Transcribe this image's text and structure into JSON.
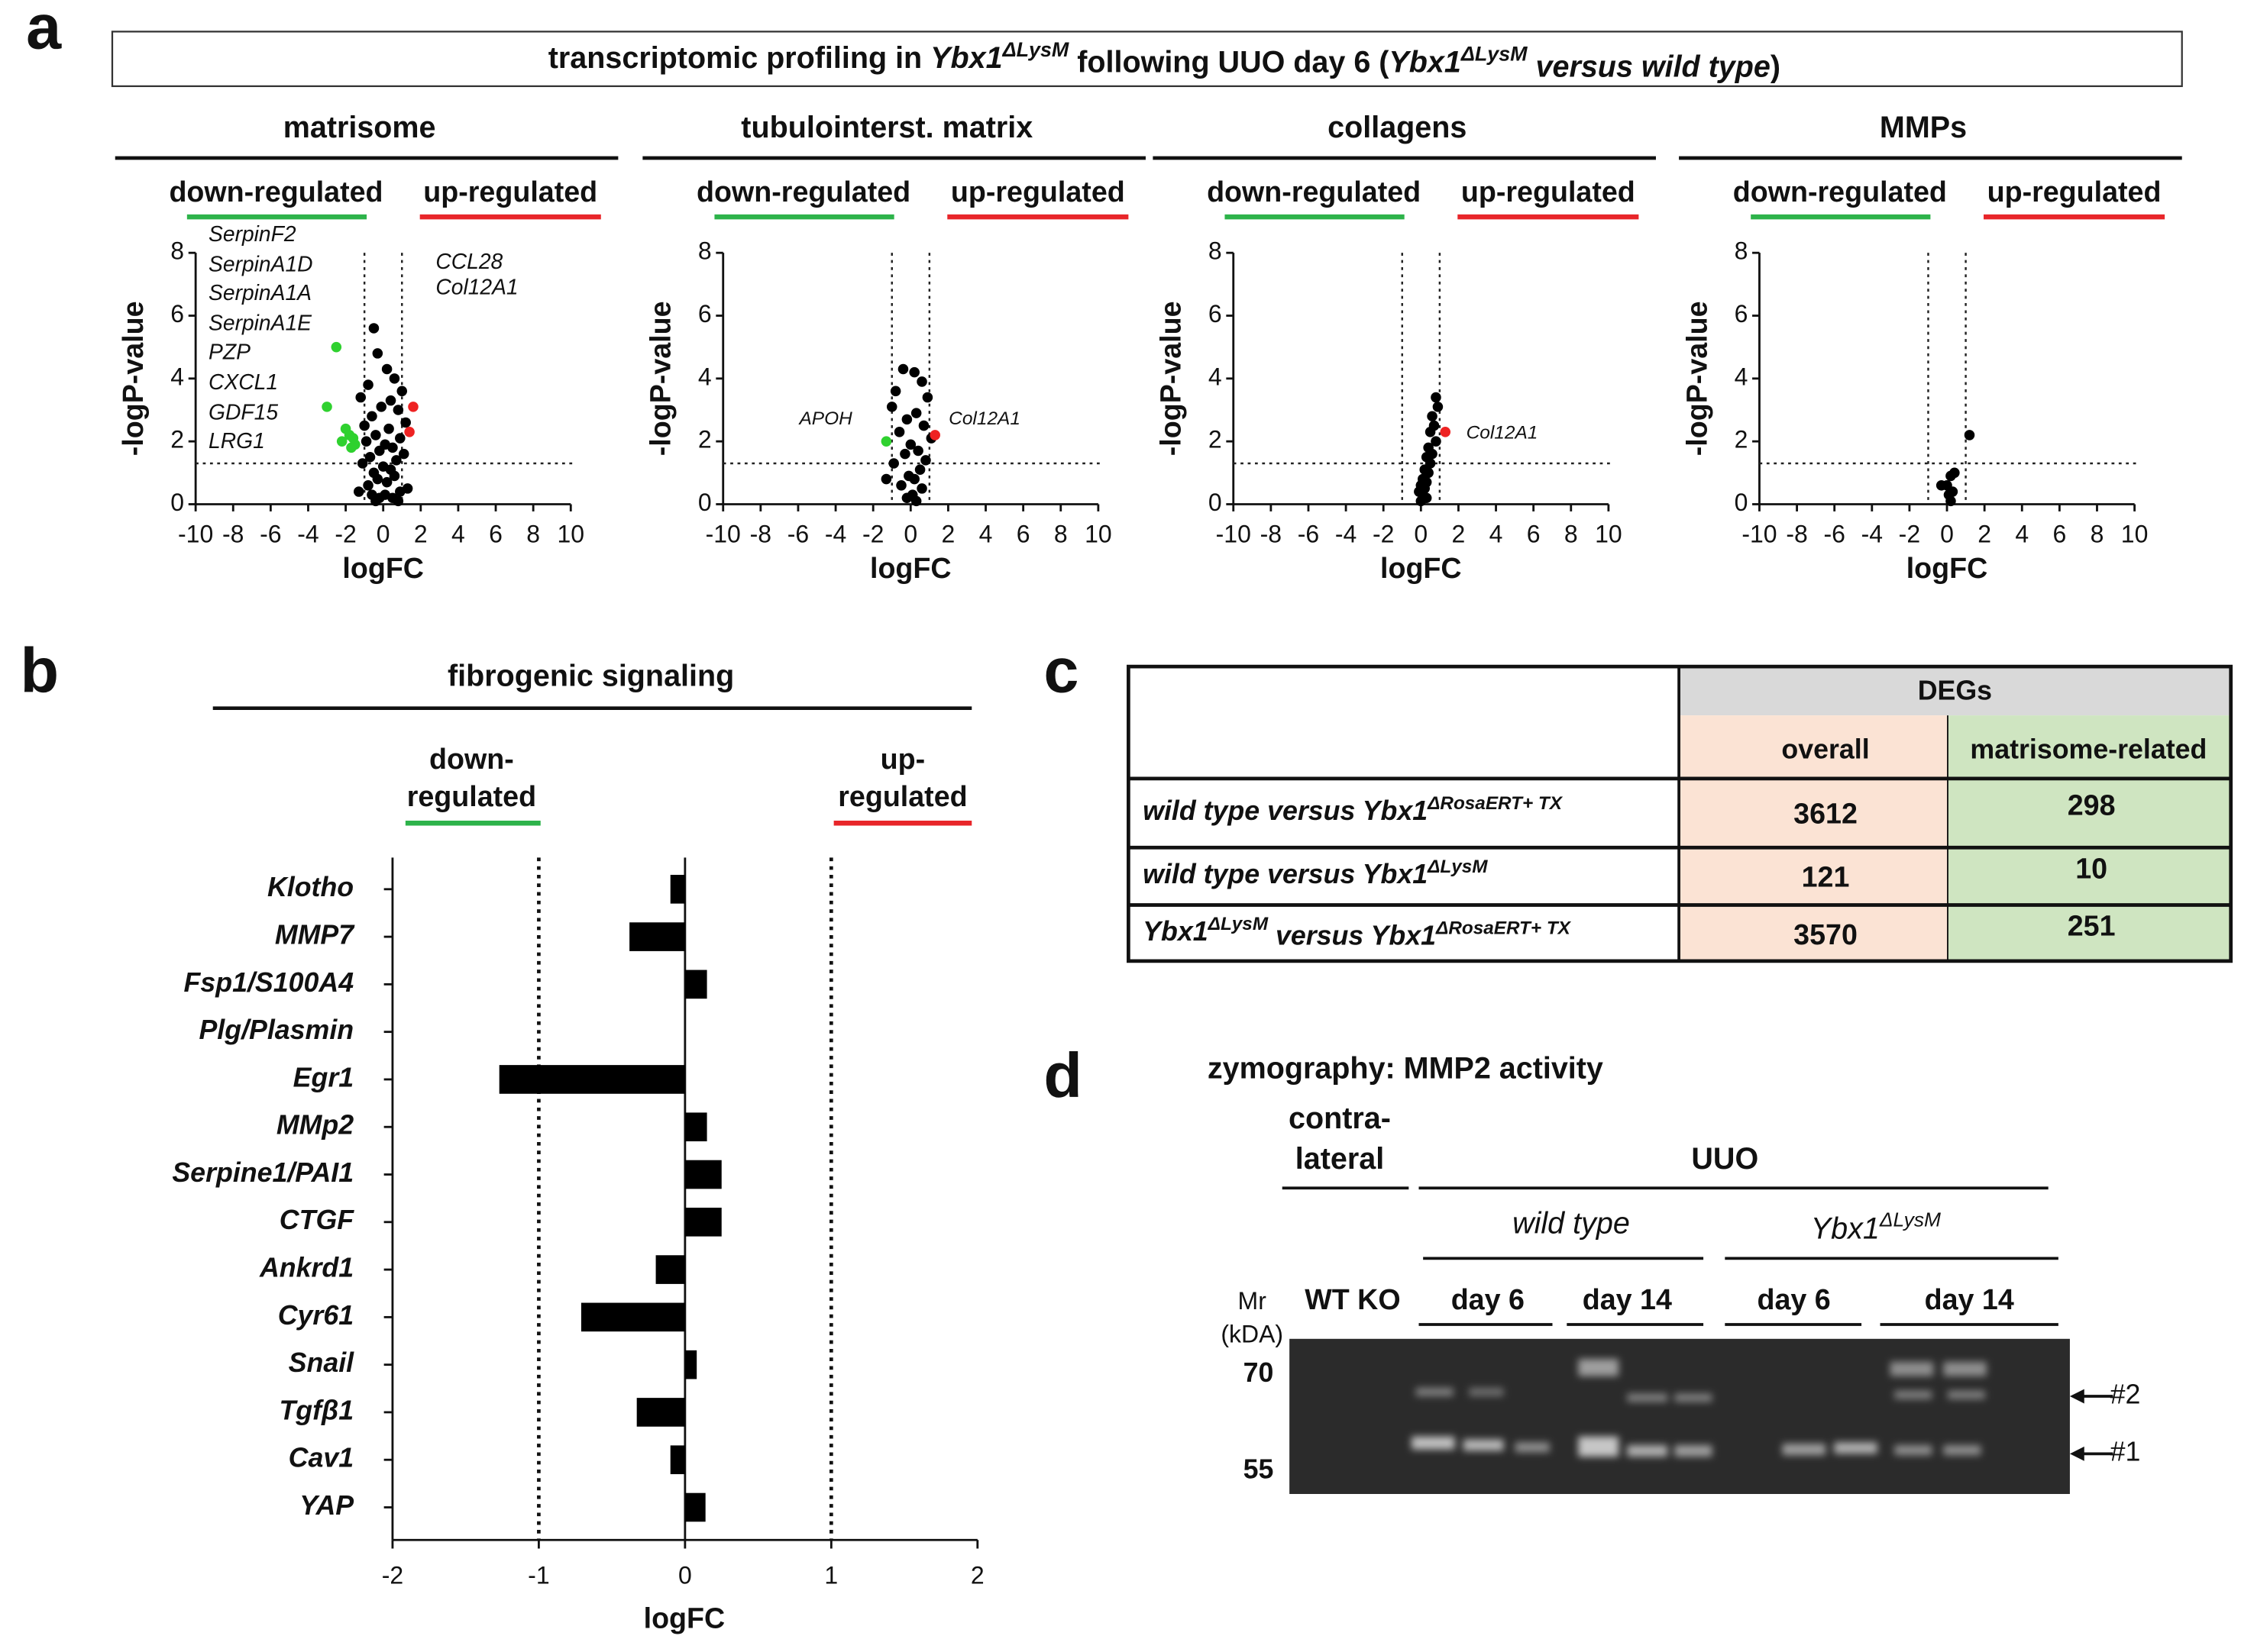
{
  "panel_labels": [
    "a",
    "b",
    "c",
    "d"
  ],
  "header": [
    "transcriptomic profiling in ",
    "Ybx1",
    "ΔLysM",
    " following UUO day 6 (",
    "Ybx1",
    "ΔLysM",
    " versus wild type",
    ")"
  ],
  "chart_data": [
    {
      "type": "scatter",
      "title": "matrisome",
      "left_label": "down-regulated",
      "right_label": "up-regulated",
      "left_color": "#2db34a",
      "right_color": "#e8262a",
      "xlabel": "logFC",
      "ylabel": "-logP-value",
      "xlim": [
        -10,
        10
      ],
      "xticks": [
        -10,
        -8,
        -6,
        -4,
        -2,
        0,
        2,
        4,
        6,
        8,
        10
      ],
      "ylim": [
        0,
        8
      ],
      "yticks": [
        0,
        2,
        4,
        6,
        8
      ],
      "reference_x": [
        -1,
        1
      ],
      "reference_y": [
        1.3
      ],
      "annotations": [
        "SerpinF2",
        "SerpinA1D",
        "SerpinA1A",
        "SerpinA1E",
        "PZP",
        "CXCL1",
        "GDF15",
        "LRG1",
        "CCL28",
        "Col12A1"
      ],
      "series": [
        {
          "color": "#000000",
          "x": [
            -0.5,
            -0.3,
            0.2,
            0.6,
            -0.8,
            1.0,
            -1.2,
            0.4,
            -0.1,
            0.8,
            -0.6,
            1.2,
            -1.0,
            0.3,
            -0.4,
            0.9,
            -0.9,
            0.1,
            0.5,
            -0.2,
            1.1,
            -0.7,
            0.7,
            -1.1,
            0.0,
            0.4,
            -0.5,
            0.6,
            -0.3,
            0.2,
            -0.8,
            1.3,
            -1.3,
            0.9,
            -0.6,
            0.1,
            0.5,
            -0.2,
            0.8,
            -0.4
          ],
          "y": [
            5.6,
            4.8,
            4.3,
            4.0,
            3.8,
            3.6,
            3.4,
            3.3,
            3.1,
            3.0,
            2.8,
            2.6,
            2.5,
            2.4,
            2.2,
            2.1,
            2.0,
            1.9,
            1.8,
            1.7,
            1.6,
            1.5,
            1.4,
            1.3,
            1.2,
            1.1,
            1.0,
            0.9,
            0.8,
            0.7,
            0.6,
            0.5,
            0.4,
            0.4,
            0.3,
            0.3,
            0.2,
            0.2,
            0.1,
            0.1
          ]
        },
        {
          "color": "#2fd12f",
          "x": [
            -2.5,
            -3.0,
            -2.0,
            -1.8,
            -1.6,
            -2.2,
            -1.5,
            -1.7
          ],
          "y": [
            5.0,
            3.1,
            2.4,
            2.2,
            2.1,
            2.0,
            1.9,
            1.8
          ]
        },
        {
          "color": "#ee2222",
          "x": [
            1.6,
            1.4
          ],
          "y": [
            3.1,
            2.3
          ]
        }
      ]
    },
    {
      "type": "scatter",
      "title": "tubulointerst. matrix",
      "left_label": "down-regulated",
      "right_label": "up-regulated",
      "left_color": "#2db34a",
      "right_color": "#e8262a",
      "xlabel": "logFC",
      "ylabel": "-logP-value",
      "xlim": [
        -10,
        10
      ],
      "xticks": [
        -10,
        -8,
        -6,
        -4,
        -2,
        0,
        2,
        4,
        6,
        8,
        10
      ],
      "ylim": [
        0,
        8
      ],
      "yticks": [
        0,
        2,
        4,
        6,
        8
      ],
      "reference_x": [
        -1,
        1
      ],
      "reference_y": [
        1.3
      ],
      "annotations": [
        "APOH",
        "Col12A1"
      ],
      "series": [
        {
          "color": "#000000",
          "x": [
            -0.4,
            0.2,
            0.6,
            -0.8,
            0.9,
            -1.0,
            0.3,
            -0.2,
            0.7,
            -0.6,
            1.1,
            0.0,
            0.4,
            -0.3,
            0.8,
            -0.9,
            0.5,
            -0.1,
            0.2,
            -0.5,
            0.6,
            0.1,
            -0.2,
            0.3,
            -1.3
          ],
          "y": [
            4.3,
            4.2,
            3.9,
            3.6,
            3.4,
            3.1,
            2.9,
            2.7,
            2.5,
            2.3,
            2.1,
            1.9,
            1.7,
            1.6,
            1.4,
            1.3,
            1.1,
            0.9,
            0.8,
            0.6,
            0.5,
            0.3,
            0.2,
            0.1,
            0.8
          ]
        },
        {
          "color": "#2fd12f",
          "x": [
            -1.3
          ],
          "y": [
            2.0
          ]
        },
        {
          "color": "#ee2222",
          "x": [
            1.3
          ],
          "y": [
            2.2
          ]
        }
      ]
    },
    {
      "type": "scatter",
      "title": "collagens",
      "left_label": "down-regulated",
      "right_label": "up-regulated",
      "left_color": "#2db34a",
      "right_color": "#e8262a",
      "xlabel": "logFC",
      "ylabel": "-logP-value",
      "xlim": [
        -10,
        10
      ],
      "xticks": [
        -10,
        -8,
        -6,
        -4,
        -2,
        0,
        2,
        4,
        6,
        8,
        10
      ],
      "ylim": [
        0,
        8
      ],
      "yticks": [
        0,
        2,
        4,
        6,
        8
      ],
      "reference_x": [
        -1,
        1
      ],
      "reference_y": [
        1.3
      ],
      "annotations": [
        "Col12A1"
      ],
      "series": [
        {
          "color": "#000000",
          "x": [
            0.8,
            0.9,
            0.6,
            0.7,
            0.5,
            0.8,
            0.4,
            0.6,
            0.3,
            0.5,
            0.2,
            0.4,
            0.1,
            0.3,
            0.0,
            0.2,
            -0.1,
            0.1,
            0.3,
            0.0
          ],
          "y": [
            3.4,
            3.1,
            2.8,
            2.5,
            2.3,
            2.0,
            1.8,
            1.6,
            1.5,
            1.3,
            1.1,
            1.0,
            0.8,
            0.7,
            0.6,
            0.5,
            0.4,
            0.3,
            0.2,
            0.1
          ]
        },
        {
          "color": "#ee2222",
          "x": [
            1.3
          ],
          "y": [
            2.3
          ]
        }
      ]
    },
    {
      "type": "scatter",
      "title": "MMPs",
      "left_label": "down-regulated",
      "right_label": "up-regulated",
      "left_color": "#2db34a",
      "right_color": "#e8262a",
      "xlabel": "logFC",
      "ylabel": "-logP-value",
      "xlim": [
        -10,
        10
      ],
      "xticks": [
        -10,
        -8,
        -6,
        -4,
        -2,
        0,
        2,
        4,
        6,
        8,
        10
      ],
      "ylim": [
        0,
        8
      ],
      "yticks": [
        0,
        2,
        4,
        6,
        8
      ],
      "reference_x": [
        -1,
        1
      ],
      "reference_y": [
        1.3
      ],
      "annotations": [],
      "series": [
        {
          "color": "#000000",
          "x": [
            1.2,
            0.4,
            0.2,
            0.0,
            -0.3,
            0.3,
            0.1,
            0.2
          ],
          "y": [
            2.2,
            1.0,
            0.9,
            0.6,
            0.6,
            0.4,
            0.3,
            0.1
          ]
        }
      ]
    },
    {
      "type": "barh",
      "title": "fibrogenic signaling",
      "left_label": [
        "down-",
        "regulated"
      ],
      "right_label": [
        "up-",
        "regulated"
      ],
      "left_color": "#2db34a",
      "right_color": "#e8262a",
      "color": "#000000",
      "xlabel": "logFC",
      "categories": [
        "Klotho",
        "MMP7",
        "Fsp1/S100A4",
        "Plg/Plasmin",
        "Egr1",
        "MMp2",
        "Serpine1/PAI1",
        "CTGF",
        "Ankrd1",
        "Cyr61",
        "Snail",
        "Tgfβ1",
        "Cav1",
        "YAP"
      ],
      "values": [
        -0.1,
        -0.38,
        0.15,
        0,
        -1.27,
        0.15,
        0.25,
        0.25,
        -0.2,
        -0.71,
        0.08,
        -0.33,
        -0.1,
        0.14
      ],
      "xlim": [
        -2,
        2
      ],
      "xticks": [
        -2,
        -1,
        0,
        1,
        2
      ],
      "reference_x": [
        -1,
        1
      ]
    }
  ],
  "table": {
    "header": "DEGs",
    "columns": [
      "overall",
      "matrisome-related"
    ],
    "rows": [
      {
        "label": [
          "wild type versus Ybx1",
          "ΔRosaERT+ TX"
        ],
        "values": [
          3612,
          298
        ]
      },
      {
        "label": [
          "wild type versus Ybx1",
          "ΔLysM"
        ],
        "values": [
          121,
          10
        ]
      },
      {
        "label": [
          "Ybx1",
          "ΔLysM",
          " versus Ybx1",
          "ΔRosaERT+ TX"
        ],
        "values": [
          3570,
          251
        ]
      }
    ]
  },
  "zymography": {
    "title": "zymography: MMP2 activity",
    "contralateral": [
      "contra-",
      "lateral"
    ],
    "uuo": "UUO",
    "groups": [
      [
        "wild type"
      ],
      [
        "Ybx1",
        "ΔLysM"
      ]
    ],
    "mr": [
      "Mr",
      "(kDA)"
    ],
    "lanes": [
      "WT KO",
      "day 6",
      "day 14",
      "day 6",
      "day 14"
    ],
    "markers": [
      70,
      55
    ],
    "bands": [
      "#2",
      "#1"
    ]
  }
}
